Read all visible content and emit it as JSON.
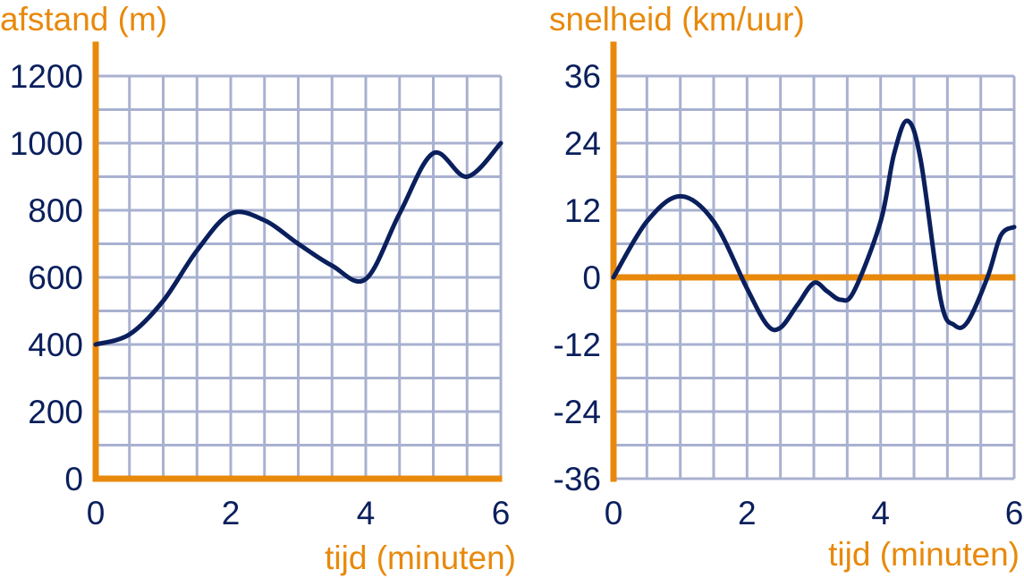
{
  "colors": {
    "axis": "#e8890c",
    "grid": "#a9b1d0",
    "curve": "#0a1f5c",
    "text": "#0a1f5c"
  },
  "chart_data": [
    {
      "type": "line",
      "title": "",
      "ylabel": "afstand (m)",
      "xlabel": "tijd (minuten)",
      "xlim": [
        0,
        6
      ],
      "ylim": [
        0,
        1200
      ],
      "x_ticks": [
        0,
        2,
        4,
        6
      ],
      "x_tick_labels": [
        "0",
        "2",
        "4",
        "6"
      ],
      "y_ticks": [
        0,
        200,
        400,
        600,
        800,
        1000,
        1200
      ],
      "y_tick_labels": [
        "0",
        "200",
        "400",
        "600",
        "800",
        "1000",
        "1200"
      ],
      "grid": true,
      "x_grid_step": 0.5,
      "y_grid_step": 100,
      "series": [
        {
          "x": [
            0,
            0.5,
            1,
            1.5,
            2,
            2.5,
            3,
            3.5,
            4,
            4.5,
            5,
            5.5,
            6
          ],
          "values": [
            400,
            430,
            530,
            680,
            790,
            770,
            700,
            635,
            595,
            790,
            970,
            900,
            1000
          ]
        }
      ]
    },
    {
      "type": "line",
      "title": "",
      "ylabel": "snelheid (km/uur)",
      "xlabel": "tijd (minuten)",
      "xlim": [
        0,
        6
      ],
      "ylim": [
        -36,
        36
      ],
      "x_ticks": [
        0,
        2,
        4,
        6
      ],
      "x_tick_labels": [
        "0",
        "2",
        "4",
        "6"
      ],
      "y_ticks": [
        -36,
        -24,
        -12,
        0,
        12,
        24,
        36
      ],
      "y_tick_labels": [
        "-36",
        "-24",
        "-12",
        "0",
        "12",
        "24",
        "36"
      ],
      "grid": true,
      "x_grid_step": 0.5,
      "y_grid_step": 6,
      "series": [
        {
          "x": [
            0,
            0.5,
            1,
            1.5,
            2,
            2.3,
            2.5,
            2.75,
            3,
            3.2,
            3.4,
            3.6,
            4,
            4.2,
            4.4,
            4.6,
            4.9,
            5.1,
            5.3,
            5.6,
            5.8,
            6
          ],
          "values": [
            0,
            10,
            14.5,
            10,
            -2,
            -8.5,
            -9,
            -5,
            -1,
            -2.5,
            -4,
            -2.5,
            10,
            22,
            28,
            21,
            -4,
            -8.5,
            -8,
            0,
            7.5,
            9
          ]
        }
      ]
    }
  ]
}
